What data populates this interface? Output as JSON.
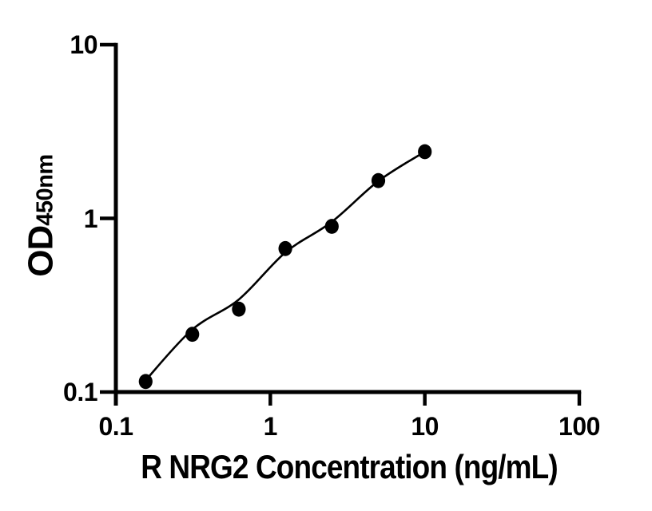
{
  "figure": {
    "background_color": "#ffffff",
    "foreground_color": "#000000"
  },
  "x_axis": {
    "title": "R NRG2 Concentration (ng/mL)",
    "scale": "log",
    "min": 0.1,
    "max": 100,
    "ticks": [
      {
        "value": 0.1,
        "label": "0.1"
      },
      {
        "value": 1,
        "label": "1"
      },
      {
        "value": 10,
        "label": "10"
      },
      {
        "value": 100,
        "label": "100"
      }
    ]
  },
  "y_axis": {
    "title_main": "OD",
    "title_sub": "450nm",
    "scale": "log",
    "min": 0.1,
    "max": 10,
    "ticks": [
      {
        "value": 10,
        "label": "10"
      },
      {
        "value": 1,
        "label": "1"
      },
      {
        "value": 0.1,
        "label": "0.1"
      }
    ]
  },
  "chart_data": {
    "type": "scatter",
    "title": "",
    "xlabel": "R NRG2 Concentration (ng/mL)",
    "ylabel": "OD450nm",
    "x_scale": "log",
    "y_scale": "log",
    "xlim": [
      0.1,
      100
    ],
    "ylim": [
      0.1,
      10
    ],
    "grid": false,
    "legend": false,
    "marker_color": "#000000",
    "line_color": "#000000",
    "series": [
      {
        "name": "standard_points",
        "type": "scatter",
        "x": [
          0.156,
          0.3125,
          0.625,
          1.25,
          2.5,
          5,
          10
        ],
        "y": [
          0.115,
          0.215,
          0.3,
          0.67,
          0.9,
          1.65,
          2.42
        ]
      },
      {
        "name": "fit_curve",
        "type": "line",
        "x": [
          0.156,
          0.3125,
          0.625,
          1.25,
          2.5,
          5,
          10
        ],
        "y": [
          0.117,
          0.229,
          0.341,
          0.636,
          0.955,
          1.64,
          2.42
        ]
      }
    ]
  }
}
